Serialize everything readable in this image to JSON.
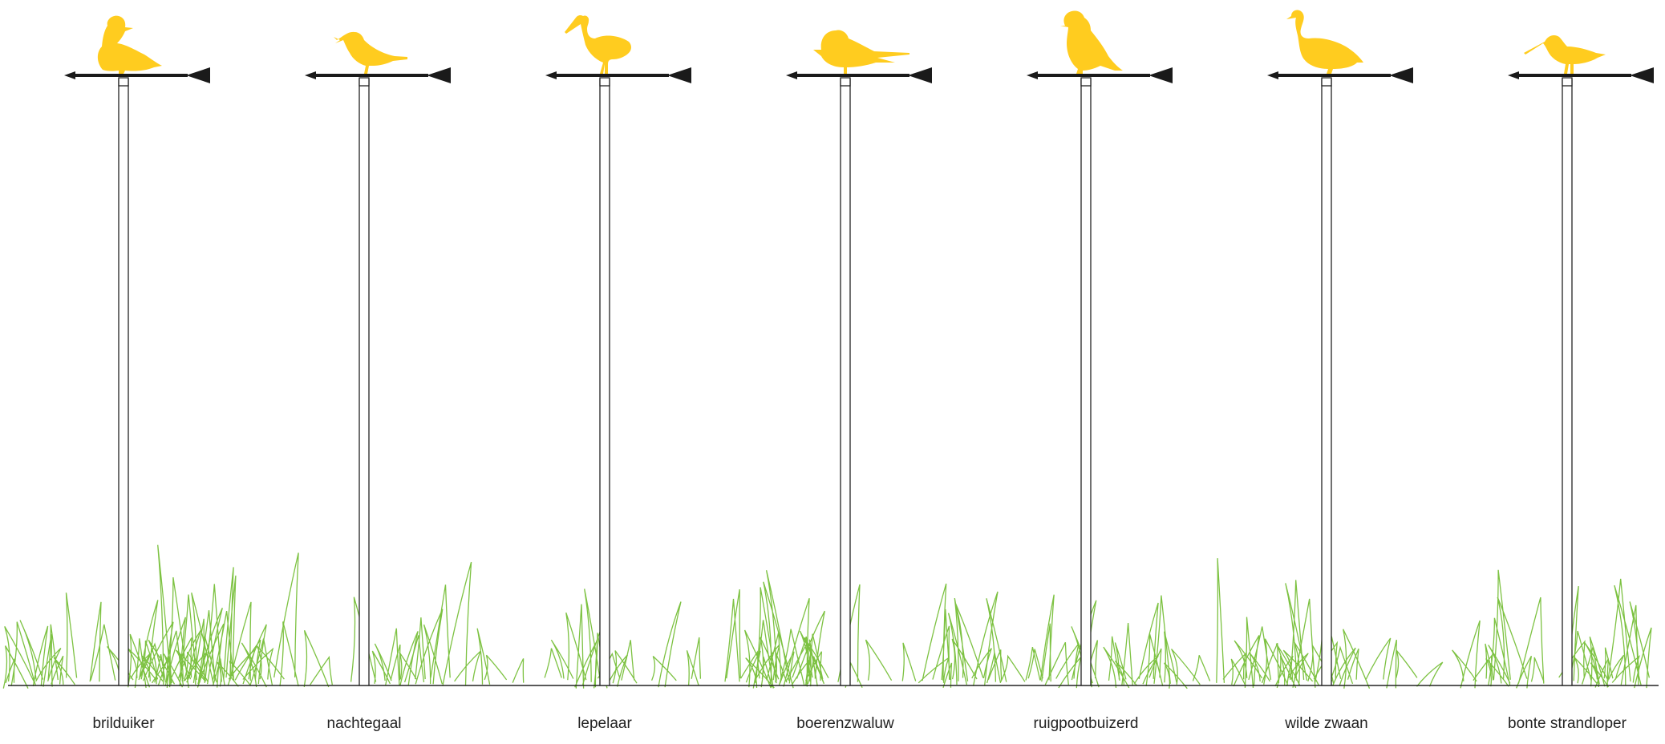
{
  "colors": {
    "bird": "#FFCC1F",
    "arrow": "#1A1A1A",
    "pole": "#222222",
    "grass": "#7DC242",
    "ground": "#222222",
    "background": "#FFFFFF"
  },
  "vanes": [
    {
      "label": "brilduiker",
      "bird": "duck-icon"
    },
    {
      "label": "nachtegaal",
      "bird": "songbird-icon"
    },
    {
      "label": "lepelaar",
      "bird": "spoonbill-icon"
    },
    {
      "label": "boerenzwaluw",
      "bird": "swallow-icon"
    },
    {
      "label": "ruigpootbuizerd",
      "bird": "buzzard-icon"
    },
    {
      "label": "wilde zwaan",
      "bird": "swan-icon"
    },
    {
      "label": "bonte strandloper",
      "bird": "dunlin-icon"
    }
  ]
}
